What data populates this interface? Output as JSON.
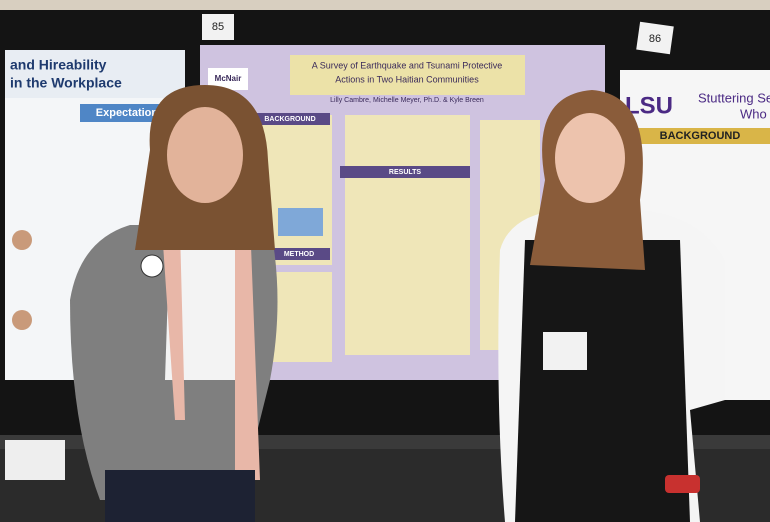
{
  "number_tags": [
    "85",
    "86"
  ],
  "center_poster": {
    "logo": "McNair",
    "title_lines": [
      "A Survey of Earthquake and Tsunami Protective",
      "Actions in Two Haitian Communities"
    ],
    "authors": "Lilly Cambre, Michelle Meyer, Ph.D. & Kyle Breen",
    "sections": [
      "BACKGROUND",
      "RESULTS",
      "METHOD"
    ]
  },
  "left_poster": {
    "title_lines": [
      "and Hireability",
      "in the Workplace"
    ],
    "section": "Expectations"
  },
  "right_poster": {
    "logo": "LSU",
    "title_lines": [
      "Stuttering Se",
      "Who"
    ],
    "section": "BACKGROUND"
  }
}
